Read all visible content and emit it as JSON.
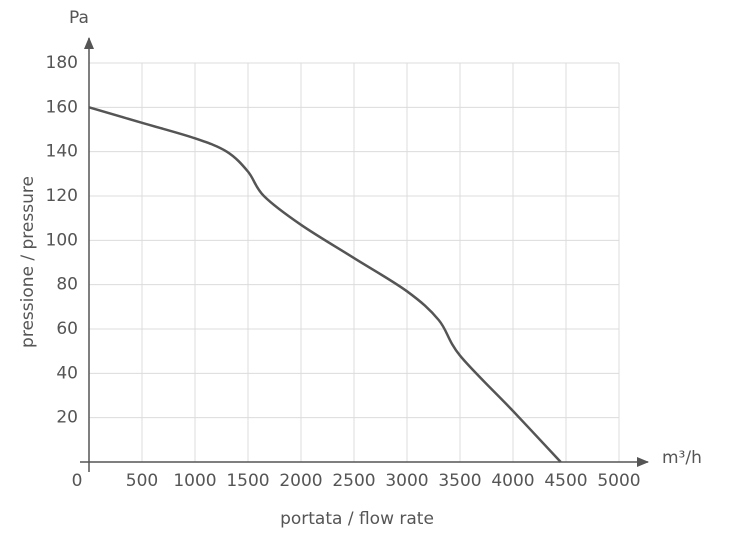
{
  "chart_data": {
    "type": "line",
    "y_unit_label": "Pa",
    "x_unit_label": "m³/h",
    "ylabel": "pressione / pressure",
    "xlabel": "portata / flow rate",
    "x": [
      0,
      500,
      1000,
      1300,
      1500,
      1650,
      2000,
      2500,
      3000,
      3300,
      3500,
      4000,
      4450
    ],
    "series": [
      {
        "color": "#555555",
        "values": [
          160,
          153,
          146,
          140,
          131,
          120,
          107,
          92,
          77,
          64,
          48,
          23,
          0
        ]
      }
    ],
    "xlim": [
      0,
      5000
    ],
    "xticks": [
      0,
      500,
      1000,
      1500,
      2000,
      2500,
      3000,
      3500,
      4000,
      4500,
      5000
    ],
    "ylim": [
      0,
      180
    ],
    "yticks": [
      20,
      40,
      60,
      80,
      100,
      120,
      140,
      160,
      180
    ],
    "grid": true
  }
}
